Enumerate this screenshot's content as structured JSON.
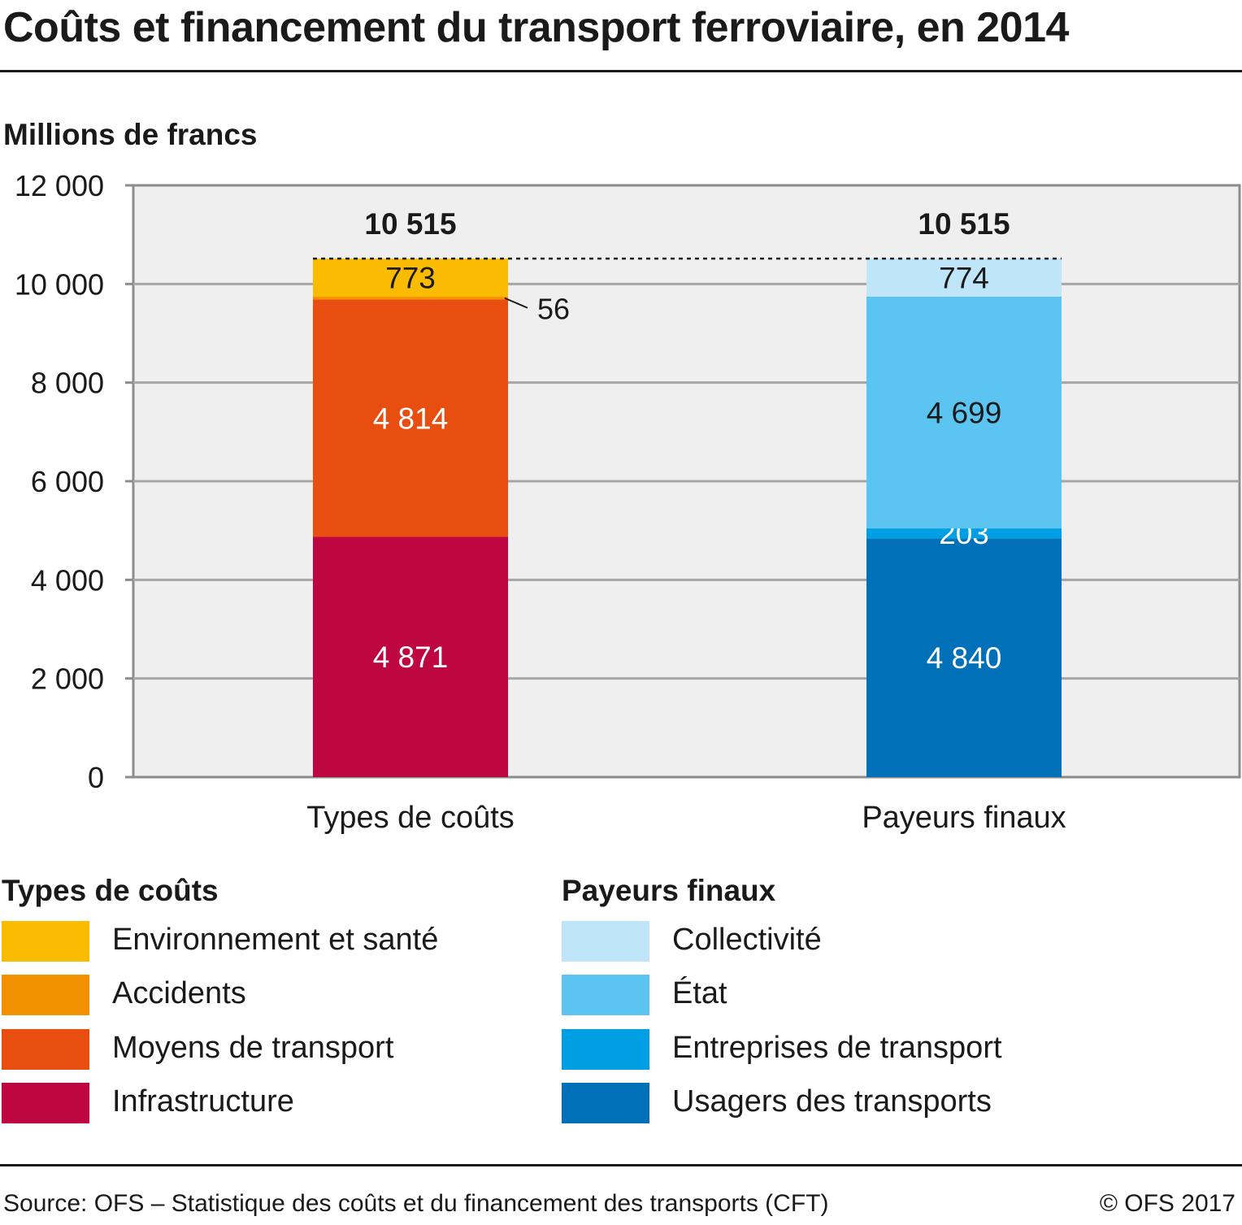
{
  "title": "Coûts et financement du transport ferroviaire, en 2014",
  "unit_label": "Millions de francs",
  "chart_data": {
    "type": "bar",
    "stacked": true,
    "categories": [
      "Types de coûts",
      "Payeurs finaux"
    ],
    "totals": [
      {
        "category": "Types de coûts",
        "value": 10515,
        "label": "10 515"
      },
      {
        "category": "Payeurs finaux",
        "value": 10515,
        "label": "10 515"
      }
    ],
    "ylim": [
      0,
      12000
    ],
    "yticks": [
      {
        "value": 0,
        "label": "0"
      },
      {
        "value": 2000,
        "label": "2 000"
      },
      {
        "value": 4000,
        "label": "4 000"
      },
      {
        "value": 6000,
        "label": "6 000"
      },
      {
        "value": 8000,
        "label": "8 000"
      },
      {
        "value": 10000,
        "label": "10 000"
      },
      {
        "value": 12000,
        "label": "12 000"
      }
    ],
    "grid": true,
    "stacks": [
      {
        "category": "Types de coûts",
        "segments": [
          {
            "name": "Infrastructure",
            "value": 4871,
            "label": "4 871",
            "color": "#be0643",
            "label_color": "#ffffff"
          },
          {
            "name": "Moyens de transport",
            "value": 4814,
            "label": "4 814",
            "color": "#e84e0f",
            "label_color": "#ffffff"
          },
          {
            "name": "Accidents",
            "value": 56,
            "label": "56",
            "color": "#f39200",
            "label_color": "#1a1a1a",
            "outside": true
          },
          {
            "name": "Environnement et santé",
            "value": 773,
            "label": "773",
            "color": "#fbbb00",
            "label_color": "#1a1a1a"
          }
        ]
      },
      {
        "category": "Payeurs finaux",
        "segments": [
          {
            "name": "Usagers des transports",
            "value": 4840,
            "label": "4 840",
            "color": "#0070b8",
            "label_color": "#ffffff"
          },
          {
            "name": "Entreprises de transport",
            "value": 203,
            "label": "203",
            "color": "#009fe3",
            "label_color": "#ffffff"
          },
          {
            "name": "État",
            "value": 4699,
            "label": "4 699",
            "color": "#5bc4f1",
            "label_color": "#1a1a1a"
          },
          {
            "name": "Collectivité",
            "value": 774,
            "label": "774",
            "color": "#bfe5f8",
            "label_color": "#1a1a1a"
          }
        ]
      }
    ]
  },
  "legend": {
    "groups": [
      {
        "title": "Types de coûts",
        "items": [
          {
            "label": "Environnement et santé",
            "color": "#fbbb00"
          },
          {
            "label": "Accidents",
            "color": "#f39200"
          },
          {
            "label": "Moyens de transport",
            "color": "#e84e0f"
          },
          {
            "label": "Infrastructure",
            "color": "#be0643"
          }
        ]
      },
      {
        "title": "Payeurs finaux",
        "items": [
          {
            "label": "Collectivité",
            "color": "#bfe5f8"
          },
          {
            "label": "État",
            "color": "#5bc4f1"
          },
          {
            "label": "Entreprises de transport",
            "color": "#009fe3"
          },
          {
            "label": "Usagers des transports",
            "color": "#0070b8"
          }
        ]
      }
    ]
  },
  "footer": {
    "source": "Source: OFS – Statistique des coûts et du financement des transports (CFT)",
    "copyright": "© OFS 2017"
  }
}
